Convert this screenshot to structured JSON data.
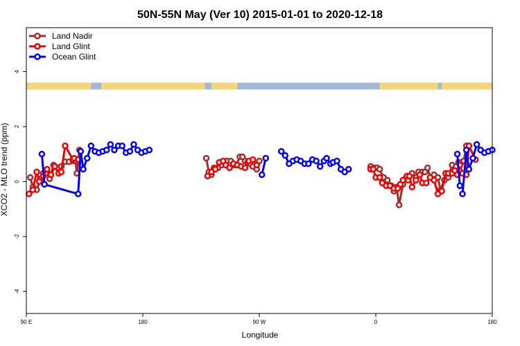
{
  "chart_data": {
    "type": "line",
    "title": "50N-55N May (Ver 10)   2015-01-01 to 2020-12-18",
    "xlabel": "Longitude",
    "ylabel": "XCO2 - MLO trend (ppm)",
    "xlim": [
      90,
      450
    ],
    "ylim": [
      -4.8,
      5.6
    ],
    "x_ticks": [
      {
        "value": 90,
        "label": "90 E"
      },
      {
        "value": 180,
        "label": "180"
      },
      {
        "value": 270,
        "label": "90 W"
      },
      {
        "value": 360,
        "label": "0"
      },
      {
        "value": 450,
        "label": "180"
      }
    ],
    "y_ticks": [
      {
        "value": -4,
        "label": "-4"
      },
      {
        "value": -2,
        "label": "-2"
      },
      {
        "value": 0,
        "label": "0"
      },
      {
        "value": 2,
        "label": "2"
      },
      {
        "value": 4,
        "label": "4"
      }
    ],
    "legend_position": "top-left",
    "grid": false,
    "land_ocean_strip": {
      "y_range": [
        3.35,
        3.6
      ],
      "ocean_color": "#a3b8d9",
      "land_color": "#f6d67b",
      "land_segments": [
        [
          90,
          140
        ],
        [
          148,
          228
        ],
        [
          233,
          253
        ],
        [
          363,
          408
        ],
        [
          411,
          450
        ]
      ]
    },
    "series": [
      {
        "name": "Land Nadir",
        "color": "#a52a2a",
        "points": [
          [
            93,
            0.15
          ],
          [
            95,
            -0.2
          ],
          [
            98,
            -0.3
          ],
          [
            101,
            0.1
          ],
          [
            103,
            0.3
          ],
          [
            105,
            0.3
          ],
          [
            108,
            0.1
          ],
          [
            111,
            0.6
          ],
          [
            114,
            0.5
          ],
          [
            117,
            0.55
          ],
          [
            120,
            0.72
          ],
          [
            123,
            0.72
          ],
          [
            126,
            0.75
          ],
          [
            128,
            0.75
          ],
          [
            129,
            0.3
          ],
          [
            131,
            1.15
          ],
          null,
          [
            229,
            0.85
          ],
          [
            231,
            0.35
          ],
          [
            233,
            0.25
          ],
          [
            235,
            0.5
          ],
          [
            238,
            0.5
          ],
          [
            241,
            0.6
          ],
          [
            245,
            0.75
          ],
          [
            248,
            0.75
          ],
          [
            250,
            0.6
          ],
          [
            252,
            0.6
          ],
          [
            255,
            0.9
          ],
          [
            257,
            0.9
          ],
          [
            259,
            0.75
          ],
          [
            261,
            0.7
          ],
          [
            263,
            0.65
          ],
          [
            265,
            0.55
          ],
          [
            268,
            0.45
          ],
          [
            270,
            0.75
          ],
          null,
          [
            356,
            0.55
          ],
          [
            359,
            0.5
          ],
          [
            361,
            0.5
          ],
          [
            363,
            0.45
          ],
          [
            366,
            0.15
          ],
          [
            369,
            0.05
          ],
          [
            372,
            -0.15
          ],
          [
            374,
            -0.35
          ],
          [
            376,
            -0.2
          ],
          [
            378,
            -0.85
          ],
          [
            381,
            -0.1
          ],
          [
            383,
            0.1
          ],
          [
            385,
            0.05
          ],
          [
            388,
            0.3
          ],
          [
            391,
            0.15
          ],
          [
            393,
            0.35
          ],
          [
            396,
            0.35
          ],
          [
            398,
            0.35
          ],
          [
            400,
            0.5
          ],
          [
            402,
            0.15
          ],
          [
            405,
            0.25
          ],
          [
            408,
            0.15
          ],
          [
            410,
            -0.3
          ],
          [
            413,
            0.05
          ],
          [
            416,
            0.15
          ],
          [
            419,
            0.6
          ],
          [
            422,
            0.55
          ],
          [
            424,
            0.7
          ],
          [
            426,
            0.7
          ],
          [
            428,
            0.75
          ],
          [
            430,
            1.3
          ]
        ]
      },
      {
        "name": "Land Glint",
        "color": "#ee0000",
        "points": [
          [
            92,
            -0.45
          ],
          [
            95,
            -0.3
          ],
          [
            98,
            0.35
          ],
          [
            100,
            0.0
          ],
          [
            103,
            0.2
          ],
          [
            106,
            0.45
          ],
          [
            109,
            0.25
          ],
          [
            112,
            0.55
          ],
          [
            115,
            0.3
          ],
          [
            117,
            0.35
          ],
          [
            120,
            1.3
          ],
          [
            126,
            0.8
          ],
          [
            127,
            0.85
          ],
          [
            130,
            0.8
          ],
          null,
          [
            230,
            0.2
          ],
          [
            233,
            0.35
          ],
          [
            236,
            0.45
          ],
          [
            239,
            0.7
          ],
          [
            242,
            0.75
          ],
          [
            244,
            0.6
          ],
          [
            247,
            0.5
          ],
          [
            250,
            0.65
          ],
          [
            253,
            0.6
          ],
          [
            256,
            0.55
          ],
          [
            259,
            0.5
          ],
          [
            262,
            0.75
          ],
          [
            265,
            0.8
          ],
          [
            268,
            0.6
          ],
          null,
          [
            356,
            0.45
          ],
          [
            358,
            0.45
          ],
          [
            360,
            0.15
          ],
          [
            363,
            0.15
          ],
          [
            365,
            -0.05
          ],
          [
            368,
            -0.15
          ],
          [
            371,
            -0.15
          ],
          [
            374,
            -0.25
          ],
          [
            377,
            -0.25
          ],
          [
            379,
            -0.1
          ],
          [
            381,
            0.05
          ],
          [
            384,
            0.2
          ],
          [
            386,
            0.2
          ],
          [
            388,
            -0.2
          ],
          [
            391,
            0.05
          ],
          [
            394,
            0.25
          ],
          [
            396,
            -0.05
          ],
          [
            399,
            -0.05
          ],
          [
            402,
            0.15
          ],
          [
            405,
            0.05
          ],
          [
            408,
            -0.45
          ],
          [
            411,
            -0.35
          ],
          [
            414,
            0.3
          ],
          [
            416,
            0.3
          ],
          [
            419,
            0.3
          ],
          [
            421,
            0.4
          ],
          [
            423,
            0.25
          ],
          [
            425,
            0.6
          ],
          [
            427,
            0.3
          ],
          [
            430,
            0.25
          ],
          [
            432,
            1.3
          ],
          [
            437,
            0.8
          ]
        ]
      },
      {
        "name": "Ocean Glint",
        "color": "#0000ee",
        "points": [
          [
            102,
            1.0
          ],
          [
            104,
            -0.1
          ],
          [
            130,
            -0.45
          ],
          [
            132,
            1.1
          ],
          [
            134,
            0.45
          ],
          [
            137,
            0.85
          ],
          [
            140,
            1.3
          ],
          [
            143,
            1.1
          ],
          [
            146,
            1.05
          ],
          [
            149,
            1.1
          ],
          [
            152,
            1.15
          ],
          [
            155,
            1.35
          ],
          [
            158,
            1.15
          ],
          [
            161,
            1.3
          ],
          [
            164,
            1.3
          ],
          [
            167,
            1.05
          ],
          [
            170,
            1.1
          ],
          [
            173,
            1.35
          ],
          [
            176,
            1.15
          ],
          [
            179,
            1.05
          ],
          [
            182,
            1.1
          ],
          [
            185,
            1.15
          ],
          null,
          [
            272,
            0.25
          ],
          [
            275,
            0.85
          ],
          null,
          [
            287,
            1.1
          ],
          [
            290,
            0.95
          ],
          [
            293,
            0.65
          ],
          [
            296,
            0.75
          ],
          [
            299,
            0.8
          ],
          [
            302,
            0.75
          ],
          [
            305,
            0.65
          ],
          [
            308,
            0.65
          ],
          [
            311,
            0.8
          ],
          [
            314,
            0.75
          ],
          [
            317,
            0.55
          ],
          [
            320,
            0.75
          ],
          [
            322,
            0.85
          ],
          [
            325,
            0.65
          ],
          [
            327,
            0.7
          ],
          [
            330,
            0.75
          ],
          [
            333,
            0.45
          ],
          [
            336,
            0.35
          ],
          [
            339,
            0.45
          ],
          null,
          [
            423,
            1.0
          ],
          [
            425,
            -0.15
          ],
          null,
          [
            427,
            -0.45
          ],
          [
            430,
            1.15
          ],
          [
            432,
            0.45
          ],
          [
            435,
            0.85
          ],
          [
            438,
            1.35
          ],
          [
            441,
            1.15
          ],
          [
            444,
            1.05
          ],
          [
            447,
            1.1
          ],
          [
            450,
            1.15
          ]
        ]
      }
    ]
  }
}
